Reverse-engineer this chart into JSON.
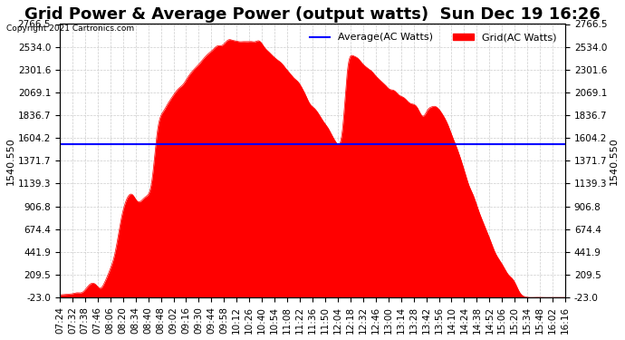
{
  "title": "Grid Power & Average Power (output watts)  Sun Dec 19 16:26",
  "copyright": "Copyright 2021 Cartronics.com",
  "avg_label": "Average(AC Watts)",
  "grid_label": "Grid(AC Watts)",
  "avg_color": "blue",
  "grid_color": "red",
  "avg_value": 1540.55,
  "ylim": [
    -23.0,
    2766.5
  ],
  "yticks": [
    2766.5,
    2534.0,
    2301.6,
    2069.1,
    1836.7,
    1604.2,
    1371.7,
    1139.3,
    906.8,
    674.4,
    441.9,
    209.5,
    -23.0
  ],
  "ylabel_rotated": "1540.550",
  "background_color": "#ffffff",
  "grid_line_color": "#cccccc",
  "title_fontsize": 13,
  "tick_fontsize": 7.5,
  "xtick_labels": [
    "07:24",
    "07:32",
    "07:38",
    "07:46",
    "08:06",
    "08:20",
    "08:34",
    "08:40",
    "08:48",
    "09:02",
    "09:16",
    "09:30",
    "09:44",
    "09:58",
    "10:12",
    "10:26",
    "10:40",
    "10:54",
    "11:08",
    "11:22",
    "11:36",
    "11:50",
    "12:04",
    "12:18",
    "12:32",
    "12:46",
    "13:00",
    "13:14",
    "13:28",
    "13:42",
    "13:56",
    "14:10",
    "14:24",
    "14:38",
    "14:52",
    "15:06",
    "15:20",
    "15:34",
    "15:48",
    "16:02",
    "16:16"
  ]
}
